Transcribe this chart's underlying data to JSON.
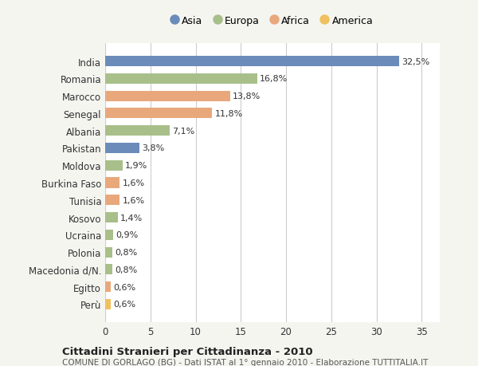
{
  "categories": [
    "India",
    "Romania",
    "Marocco",
    "Senegal",
    "Albania",
    "Pakistan",
    "Moldova",
    "Burkina Faso",
    "Tunisia",
    "Kosovo",
    "Ucraina",
    "Polonia",
    "Macedonia d/N.",
    "Egitto",
    "Perù"
  ],
  "values": [
    32.5,
    16.8,
    13.8,
    11.8,
    7.1,
    3.8,
    1.9,
    1.6,
    1.6,
    1.4,
    0.9,
    0.8,
    0.8,
    0.6,
    0.6
  ],
  "colors": [
    "#6b8cba",
    "#a8bf8a",
    "#e8a87c",
    "#e8a87c",
    "#a8bf8a",
    "#6b8cba",
    "#a8bf8a",
    "#e8a87c",
    "#e8a87c",
    "#a8bf8a",
    "#a8bf8a",
    "#a8bf8a",
    "#a8bf8a",
    "#e8a87c",
    "#f0c060"
  ],
  "labels": [
    "32,5%",
    "16,8%",
    "13,8%",
    "11,8%",
    "7,1%",
    "3,8%",
    "1,9%",
    "1,6%",
    "1,6%",
    "1,4%",
    "0,9%",
    "0,8%",
    "0,8%",
    "0,6%",
    "0,6%"
  ],
  "legend": [
    {
      "label": "Asia",
      "color": "#6b8cba"
    },
    {
      "label": "Europa",
      "color": "#a8bf8a"
    },
    {
      "label": "Africa",
      "color": "#e8a87c"
    },
    {
      "label": "America",
      "color": "#f0c060"
    }
  ],
  "xlim": [
    0,
    37
  ],
  "xticks": [
    0,
    5,
    10,
    15,
    20,
    25,
    30,
    35
  ],
  "title": "Cittadini Stranieri per Cittadinanza - 2010",
  "subtitle": "COMUNE DI GORLAGO (BG) - Dati ISTAT al 1° gennaio 2010 - Elaborazione TUTTITALIA.IT",
  "background_color": "#f5f5f0",
  "bar_background_color": "#ffffff",
  "grid_color": "#cccccc"
}
